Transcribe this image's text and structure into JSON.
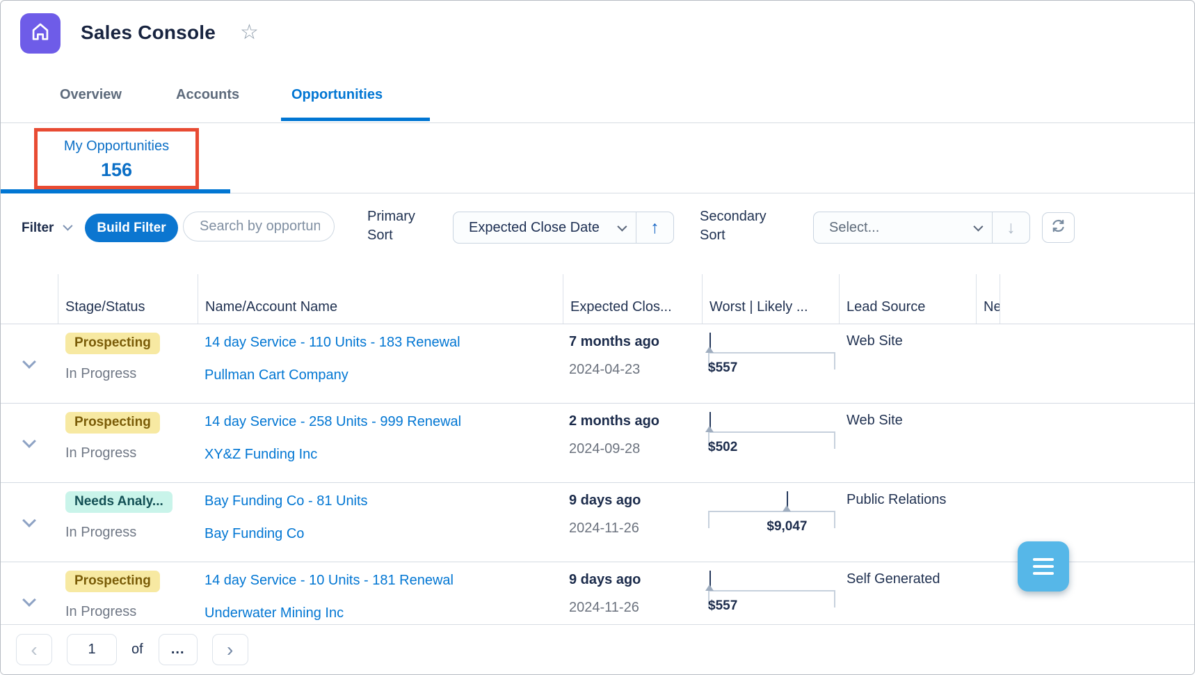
{
  "app": {
    "title": "Sales Console"
  },
  "icons": {
    "star": "☆",
    "sort_asc": "↑",
    "sort_desc": "↓",
    "prev": "‹",
    "next": "›"
  },
  "tabs": [
    {
      "label": "Overview",
      "active": false
    },
    {
      "label": "Accounts",
      "active": false
    },
    {
      "label": "Opportunities",
      "active": true
    }
  ],
  "subtab": {
    "label": "My Opportunities",
    "count": "156"
  },
  "toolbar": {
    "filter_label": "Filter",
    "build_filter_label": "Build Filter",
    "search_placeholder": "Search by opportunity name",
    "primary_sort_label": "Primary Sort",
    "primary_sort_value": "Expected Close Date",
    "secondary_sort_label": "Secondary Sort",
    "secondary_sort_placeholder": "Select..."
  },
  "table": {
    "columns": [
      "Stage/Status",
      "Name/Account Name",
      "Expected Clos...",
      "Worst | Likely ...",
      "Lead Source",
      "Ne"
    ],
    "rows": [
      {
        "stage": "Prospecting",
        "stage_color": "yellow",
        "status": "In Progress",
        "name": "14 day Service - 110 Units - 183 Renewal",
        "account": "Pullman Cart Company",
        "close_relative": "7 months ago",
        "close_date": "2024-04-23",
        "amount": "$557",
        "marker_pct": 1,
        "lead_source": "Web Site"
      },
      {
        "stage": "Prospecting",
        "stage_color": "yellow",
        "status": "In Progress",
        "name": "14 day Service - 258 Units - 999 Renewal",
        "account": "XY&Z Funding Inc",
        "close_relative": "2 months ago",
        "close_date": "2024-09-28",
        "amount": "$502",
        "marker_pct": 1,
        "lead_source": "Web Site"
      },
      {
        "stage": "Needs Analy...",
        "stage_color": "teal",
        "status": "In Progress",
        "name": "Bay Funding Co - 81 Units",
        "account": "Bay Funding Co",
        "close_relative": "9 days ago",
        "close_date": "2024-11-26",
        "amount": "$9,047",
        "marker_pct": 62,
        "lead_source": "Public Relations"
      },
      {
        "stage": "Prospecting",
        "stage_color": "yellow",
        "status": "In Progress",
        "name": "14 day Service - 10 Units - 181 Renewal",
        "account": "Underwater Mining Inc",
        "close_relative": "9 days ago",
        "close_date": "2024-11-26",
        "amount": "$557",
        "marker_pct": 1,
        "lead_source": "Self Generated"
      }
    ]
  },
  "pagination": {
    "page": "1",
    "of_label": "of",
    "more_label": "..."
  },
  "colors": {
    "accent_blue": "#0176d3",
    "app_icon_purple": "#6e5ce8",
    "annotation_red": "#e84b33",
    "fab_blue": "#56b7e8",
    "badge_yellow_bg": "#f7e9a2",
    "badge_yellow_text": "#7a5c08",
    "badge_teal_bg": "#c9f4ea",
    "badge_teal_text": "#135055"
  }
}
